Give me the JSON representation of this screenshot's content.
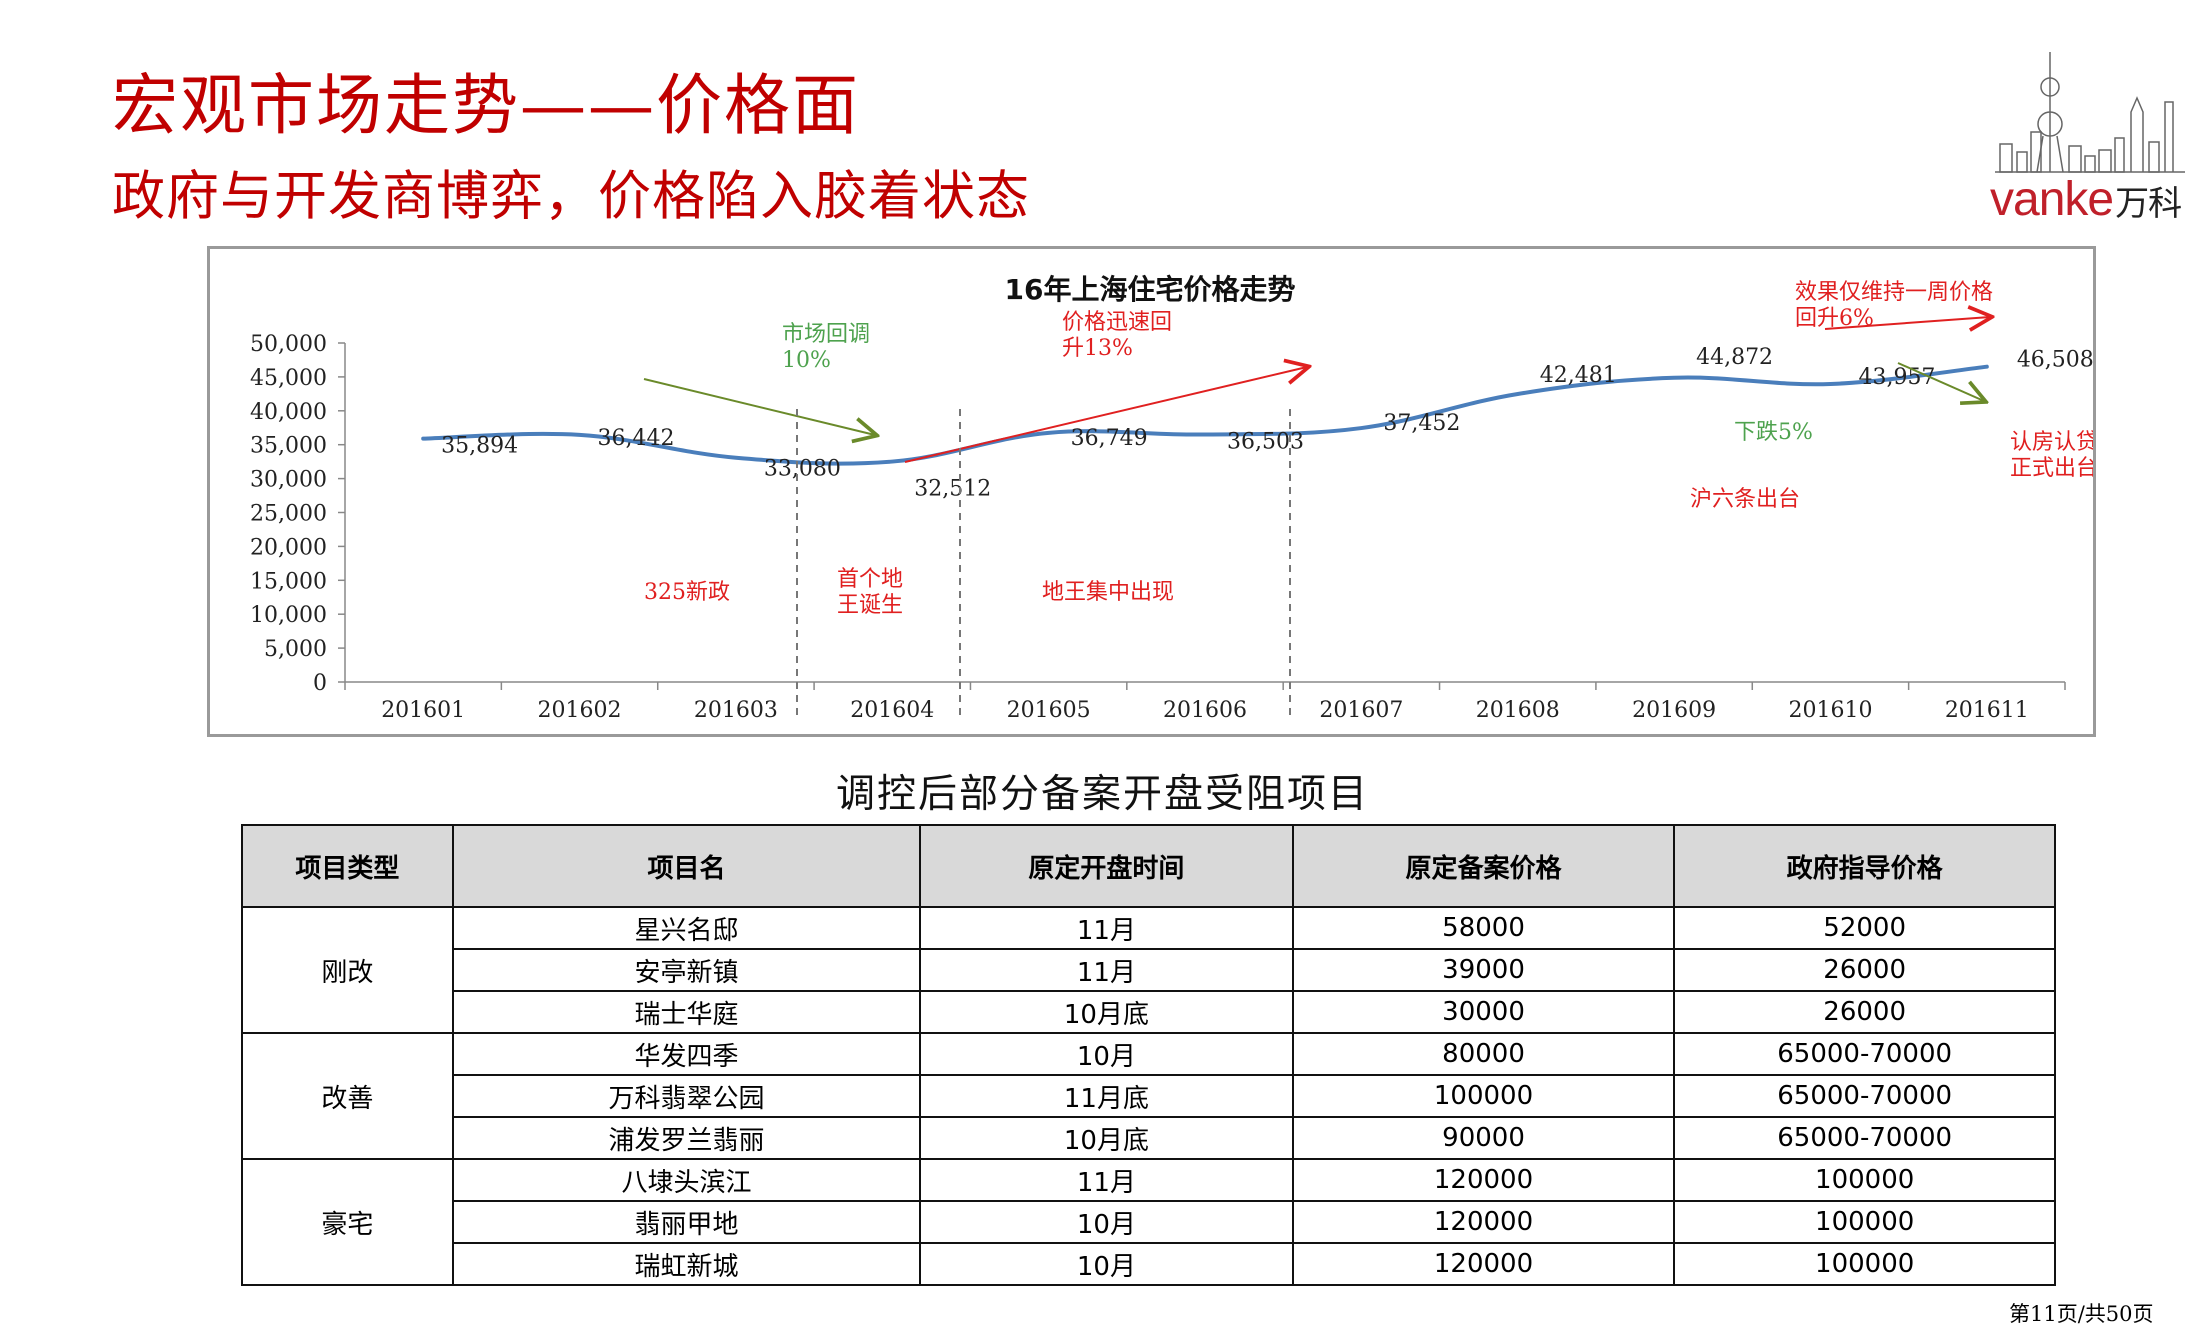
{
  "slide": {
    "title": "宏观市场走势——价格面",
    "subtitle": "政府与开发商博弈，价格陷入胶着状态",
    "page_number": "第11页/共50页"
  },
  "logo": {
    "brand": "vanke",
    "brand_cn": "万科",
    "accent_color": "#c0202a"
  },
  "chart_data": {
    "type": "line",
    "title": "16年上海住宅价格走势",
    "categories": [
      "201601",
      "201602",
      "201603",
      "201604",
      "201605",
      "201606",
      "201607",
      "201608",
      "201609",
      "201610",
      "201611"
    ],
    "values": [
      35894,
      36442,
      33080,
      32512,
      36749,
      36503,
      37452,
      42481,
      44872,
      43957,
      46508
    ],
    "data_labels": [
      "35,894",
      "36,442",
      "33,080",
      "32,512",
      "36,749",
      "36,503",
      "37,452",
      "42,481",
      "44,872",
      "43,957",
      "46,508"
    ],
    "ylim": [
      0,
      50000
    ],
    "yticks": [
      "0",
      "5,000",
      "10,000",
      "15,000",
      "20,000",
      "25,000",
      "30,000",
      "35,000",
      "40,000",
      "45,000",
      "50,000"
    ],
    "series_color": "#4a7ebb",
    "annotations": {
      "market_adjust": "市场回调10%",
      "price_rise": "价格迅速回升13%",
      "effect_week": "效果仅维持一周价格回升6%",
      "drop": "下跌5%",
      "policy_325": "325新政",
      "first_landking": "首个地王诞生",
      "landking_cluster": "地王集中出现",
      "hu_six": "沪六条出台",
      "recognize_house": "认房认贷正式出台"
    },
    "annotation_colors": {
      "green": "#4ea24e",
      "red": "#e02020",
      "olive": "#6a8a2a"
    }
  },
  "table": {
    "caption": "调控后部分备案开盘受阻项目",
    "headers": [
      "项目类型",
      "项目名",
      "原定开盘时间",
      "原定备案价格",
      "政府指导价格"
    ],
    "groups": [
      {
        "type": "刚改",
        "rows": [
          [
            "星兴名邸",
            "11月",
            "58000",
            "52000"
          ],
          [
            "安亭新镇",
            "11月",
            "39000",
            "26000"
          ],
          [
            "瑞士华庭",
            "10月底",
            "30000",
            "26000"
          ]
        ]
      },
      {
        "type": "改善",
        "rows": [
          [
            "华发四季",
            "10月",
            "80000",
            "65000-70000"
          ],
          [
            "万科翡翠公园",
            "11月底",
            "100000",
            "65000-70000"
          ],
          [
            "浦发罗兰翡丽",
            "10月底",
            "90000",
            "65000-70000"
          ]
        ]
      },
      {
        "type": "豪宅",
        "rows": [
          [
            "八埭头滨江",
            "11月",
            "120000",
            "100000"
          ],
          [
            "翡丽甲地",
            "10月",
            "120000",
            "100000"
          ],
          [
            "瑞虹新城",
            "10月",
            "120000",
            "100000"
          ]
        ]
      }
    ]
  }
}
